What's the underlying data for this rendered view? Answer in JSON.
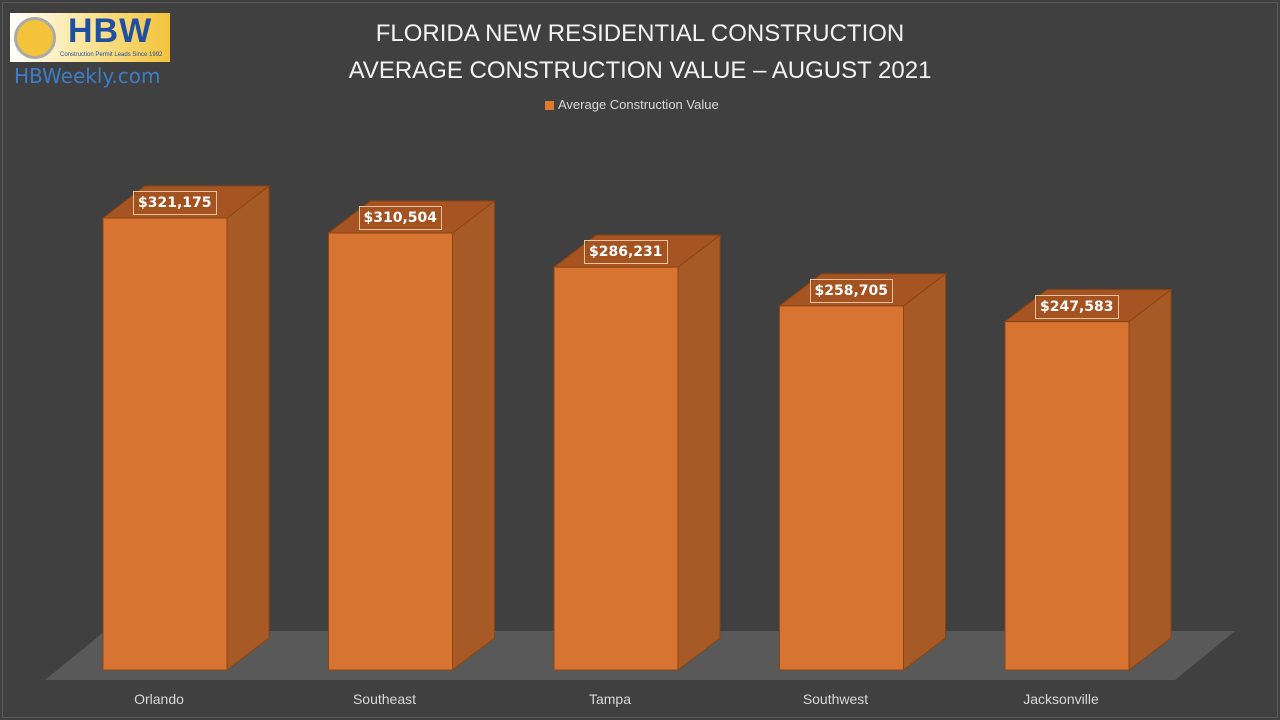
{
  "logo": {
    "text": "HBW",
    "tagline": "Construction Permit Leads Since 1992"
  },
  "site": "HBWeekly.com",
  "chart_data": {
    "type": "bar",
    "title": "FLORIDA NEW RESIDENTIAL CONSTRUCTION",
    "subtitle": "AVERAGE CONSTRUCTION VALUE – AUGUST 2021",
    "categories": [
      "Orlando",
      "Southeast",
      "Tampa",
      "Southwest",
      "Jacksonville"
    ],
    "series": [
      {
        "name": "Average Construction Value",
        "values": [
          321175,
          310504,
          286231,
          258705,
          247583
        ],
        "color": "#e07a2e"
      }
    ],
    "data_labels": [
      "$321,175",
      "$310,504",
      "$286,231",
      "$258,705",
      "$247,583"
    ],
    "legend": "top",
    "grid": false,
    "style": "3d-column"
  }
}
